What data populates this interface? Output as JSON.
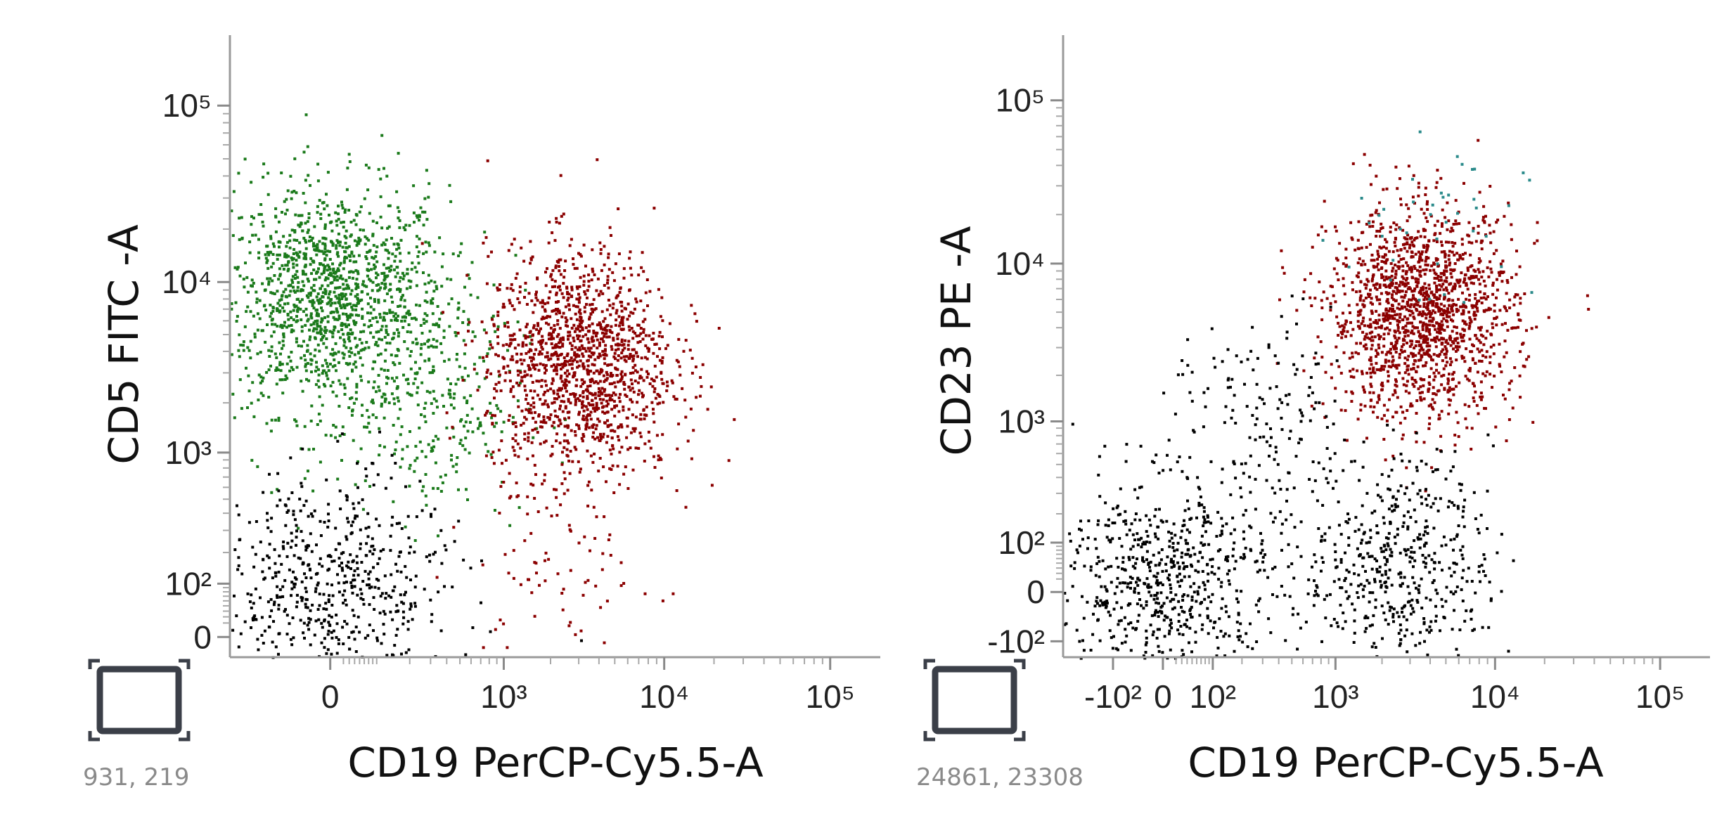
{
  "plots": [
    {
      "y_axis_label": "CD5 FITC -A",
      "x_axis_label": "CD19 PerCP-Cy5.5-A",
      "coordinate_readout": "931, 219",
      "x_ticks": [
        "0",
        "10³",
        "10⁴",
        "10⁵"
      ],
      "y_ticks": [
        "10⁵",
        "10⁴",
        "10³",
        "10²",
        "0"
      ]
    },
    {
      "y_axis_label": "CD23 PE -A",
      "x_axis_label": "CD19 PerCP-Cy5.5-A",
      "coordinate_readout": "24861, 23308",
      "x_ticks": [
        "-10²",
        "0",
        "10²",
        "10³",
        "10⁴",
        "10⁵"
      ],
      "y_ticks": [
        "10⁵",
        "10⁴",
        "10³",
        "10²",
        "0",
        "-10²"
      ]
    }
  ],
  "chart_data": [
    {
      "type": "scatter",
      "title": "",
      "xlabel": "CD19 PerCP-Cy5.5-A",
      "ylabel": "CD5 FITC -A",
      "x_scale": "biexponential",
      "y_scale": "biexponential",
      "xlim": [
        -300,
        200000
      ],
      "ylim": [
        -30,
        250000
      ],
      "x_tick_values": [
        0,
        1000,
        10000,
        100000
      ],
      "y_tick_values": [
        100000,
        10000,
        1000,
        100,
        0
      ],
      "grid": false,
      "legend": "none",
      "populations": [
        {
          "color": "#1b7a1b",
          "x_center": 0,
          "y_center": 8000,
          "n_points": 1400
        },
        {
          "color": "#1b7a1b",
          "x_center": 300,
          "y_center": 2000,
          "n_points": 260
        },
        {
          "color": "#8b0000",
          "x_center": 3000,
          "y_center": 3500,
          "n_points": 1400
        },
        {
          "color": "#8b0000",
          "x_center": 2500,
          "y_center": 150,
          "n_points": 80
        },
        {
          "color": "#000000",
          "x_center": 0,
          "y_center": 90,
          "n_points": 600
        }
      ]
    },
    {
      "type": "scatter",
      "title": "",
      "xlabel": "CD19 PerCP-Cy5.5-A",
      "ylabel": "CD23 PE -A",
      "x_scale": "biexponential",
      "y_scale": "biexponential",
      "xlim": [
        -300,
        200000
      ],
      "ylim": [
        -150,
        250000
      ],
      "x_tick_values": [
        -100,
        0,
        100,
        1000,
        10000,
        100000
      ],
      "y_tick_values": [
        100000,
        10000,
        1000,
        100,
        0,
        -100
      ],
      "grid": false,
      "legend": "none",
      "populations": [
        {
          "color": "#8b0000",
          "x_center": 3500,
          "y_center": 5000,
          "n_points": 1600
        },
        {
          "color": "#000000",
          "x_center": 0,
          "y_center": 20,
          "n_points": 700
        },
        {
          "color": "#000000",
          "x_center": 2500,
          "y_center": 60,
          "n_points": 500
        },
        {
          "color": "#000000",
          "x_center": 300,
          "y_center": 1000,
          "n_points": 150
        },
        {
          "color": "#2a8a8a",
          "x_center": 4000,
          "y_center": 15000,
          "n_points": 40
        }
      ]
    }
  ]
}
